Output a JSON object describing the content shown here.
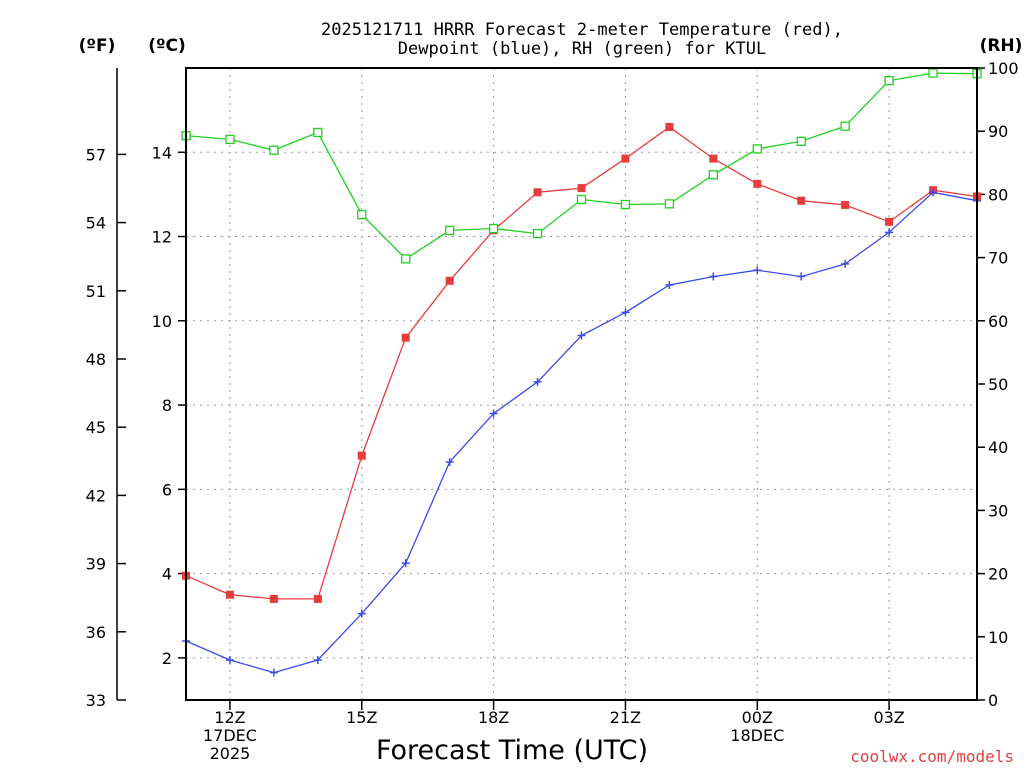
{
  "chart_data": {
    "type": "line",
    "title": "2025121711 HRRR Forecast 2-meter Temperature (red),",
    "subtitle": "Dewpoint (blue), RH (green) for KTUL",
    "xlabel": "Forecast Time (UTC)",
    "credit": "coolwx.com/models",
    "units": {
      "left_f": "(ºF)",
      "left_c": "(ºC)",
      "right_rh": "(RH)"
    },
    "x_hours": [
      11,
      12,
      13,
      14,
      15,
      16,
      17,
      18,
      19,
      20,
      21,
      22,
      23,
      24,
      25,
      26,
      27,
      28,
      29
    ],
    "x_ticks": [
      {
        "hour": 12,
        "lines": [
          "12Z",
          "17DEC",
          "2025"
        ]
      },
      {
        "hour": 15,
        "lines": [
          "15Z"
        ]
      },
      {
        "hour": 18,
        "lines": [
          "18Z"
        ]
      },
      {
        "hour": 21,
        "lines": [
          "21Z"
        ]
      },
      {
        "hour": 24,
        "lines": [
          "00Z",
          "18DEC"
        ]
      },
      {
        "hour": 27,
        "lines": [
          "03Z"
        ]
      }
    ],
    "xlim": [
      11,
      29
    ],
    "c_axis": {
      "ylim": [
        1,
        16
      ],
      "ticks": [
        2,
        4,
        6,
        8,
        10,
        12,
        14
      ]
    },
    "f_axis": {
      "ylim": [
        33,
        60.8
      ],
      "ticks": [
        33,
        36,
        39,
        42,
        45,
        48,
        51,
        54,
        57
      ]
    },
    "rh_axis": {
      "ylim": [
        0,
        100
      ],
      "ticks": [
        0,
        10,
        20,
        30,
        40,
        50,
        60,
        70,
        80,
        90,
        100
      ]
    },
    "series": [
      {
        "name": "Temperature",
        "axis": "c",
        "color": "#e83c3c",
        "marker": "filled-square",
        "values": [
          3.95,
          3.5,
          3.4,
          3.4,
          6.8,
          9.6,
          10.95,
          12.15,
          13.05,
          13.15,
          13.85,
          14.6,
          13.85,
          13.25,
          12.85,
          12.75,
          12.35,
          13.1,
          12.95
        ]
      },
      {
        "name": "Dewpoint",
        "axis": "c",
        "color": "#3c4ae8",
        "marker": "plus",
        "values": [
          2.4,
          1.95,
          1.65,
          1.95,
          3.05,
          4.25,
          6.65,
          7.8,
          8.55,
          9.65,
          10.2,
          10.85,
          11.05,
          11.2,
          11.05,
          11.35,
          12.1,
          13.05,
          12.85
        ]
      },
      {
        "name": "RH",
        "axis": "rh",
        "color": "#1ed21e",
        "marker": "open-square",
        "values": [
          89.3,
          88.7,
          87.0,
          89.8,
          76.8,
          69.8,
          74.3,
          74.6,
          73.8,
          79.2,
          78.4,
          78.5,
          83.1,
          87.2,
          88.4,
          90.8,
          98.0,
          99.2,
          99.1
        ]
      }
    ]
  }
}
